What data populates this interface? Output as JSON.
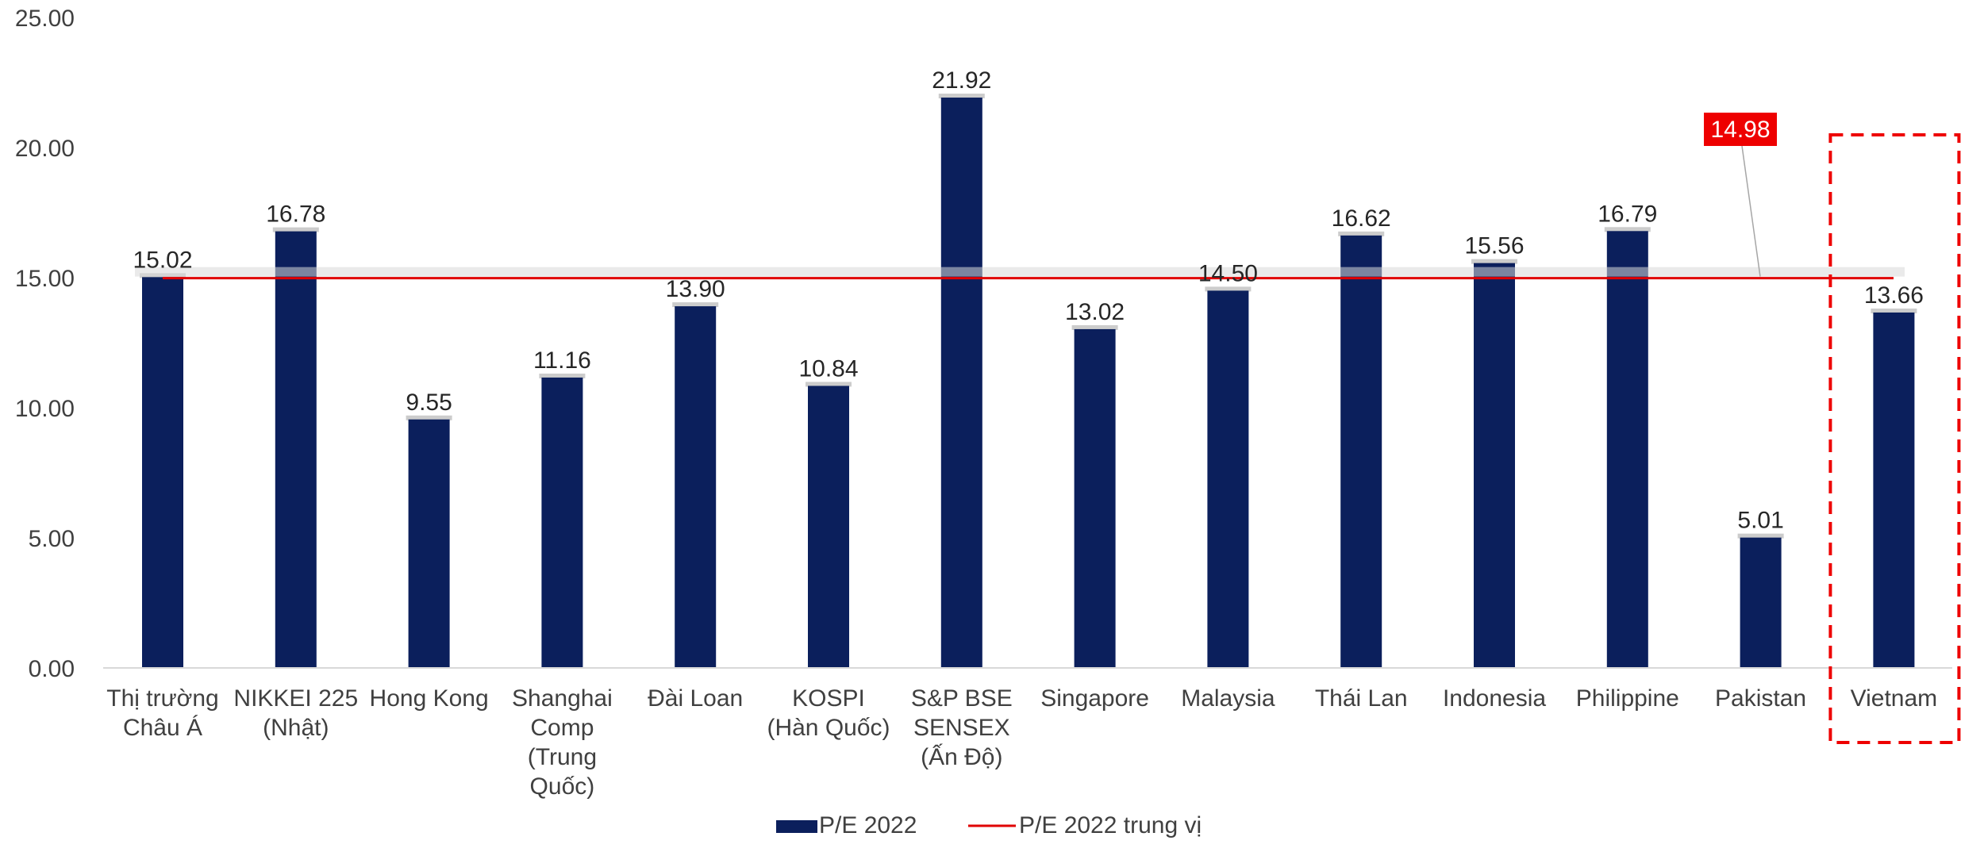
{
  "chart_data": {
    "type": "bar",
    "categories": [
      [
        "Thị trường",
        "Châu Á"
      ],
      [
        "NIKKEI 225",
        "(Nhật)"
      ],
      [
        "Hong Kong"
      ],
      [
        "Shanghai",
        "Comp",
        "(Trung",
        "Quốc)"
      ],
      [
        "Đài Loan"
      ],
      [
        "KOSPI",
        "(Hàn Quốc)"
      ],
      [
        "S&P BSE",
        "SENSEX",
        "(Ấn Độ)"
      ],
      [
        "Singapore"
      ],
      [
        "Malaysia"
      ],
      [
        "Thái Lan"
      ],
      [
        "Indonesia"
      ],
      [
        "Philippine"
      ],
      [
        "Pakistan"
      ],
      [
        "Vietnam"
      ]
    ],
    "series": [
      {
        "name": "P/E 2022",
        "type": "bar",
        "color": "#0b1f5c",
        "values": [
          15.02,
          16.78,
          9.55,
          11.16,
          13.9,
          10.84,
          21.92,
          13.02,
          14.5,
          16.62,
          15.56,
          16.79,
          5.01,
          13.66
        ],
        "labels": [
          "15.02",
          "16.78",
          "9.55",
          "11.16",
          "13.90",
          "10.84",
          "21.92",
          "13.02",
          "14.50",
          "16.62",
          "15.56",
          "16.79",
          "5.01",
          "13.66"
        ]
      },
      {
        "name": "P/E 2022 trung vị",
        "type": "line",
        "color": "#e00000",
        "value": 14.98,
        "label": "14.98"
      }
    ],
    "y_ticks": [
      "0.00",
      "5.00",
      "10.00",
      "15.00",
      "20.00",
      "25.00"
    ],
    "ylim": [
      0,
      25
    ],
    "grid": false,
    "legend_position": "bottom",
    "highlight": {
      "category": "Vietnam",
      "style": "dashed-red-box"
    },
    "median_callout_color": "#ee0000"
  }
}
